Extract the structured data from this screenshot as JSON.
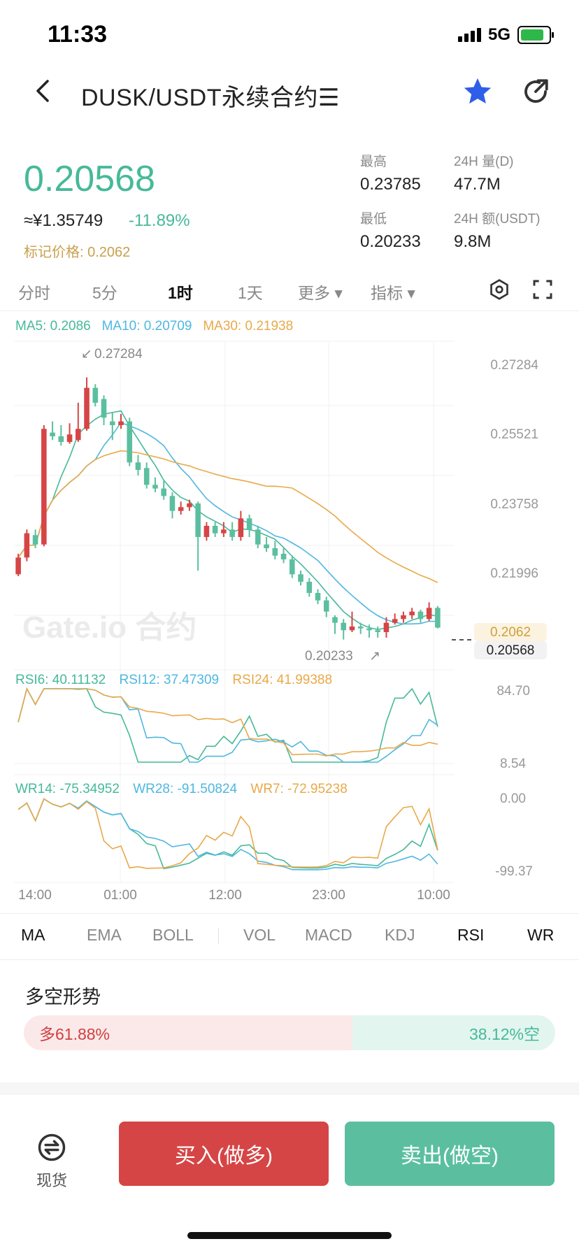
{
  "status": {
    "time": "11:33",
    "network": "5G"
  },
  "header": {
    "title": "DUSK/USDT永续合约☰"
  },
  "ticker": {
    "last_price": "0.20568",
    "cny_price": "≈¥1.35749",
    "change": "-11.89%",
    "mark_price": "标记价格: 0.2062",
    "high_label": "最高",
    "high_value": "0.23785",
    "vol_label": "24H 量(D)",
    "vol_value": "47.7M",
    "low_label": "最低",
    "low_value": "0.20233",
    "amount_label": "24H 额(USDT)",
    "amount_value": "9.8M"
  },
  "timeframe_tabs": [
    "分时",
    "5分",
    "1时",
    "1天",
    "更多 ▾",
    "指标 ▾"
  ],
  "active_timeframe": "1时",
  "ma_legend": {
    "ma5": "MA5: 0.2086",
    "ma10": "MA10: 0.20709",
    "ma30": "MA30: 0.21938"
  },
  "rsi_legend": {
    "rsi6": "RSI6: 40.11132",
    "rsi12": "RSI12: 37.47309",
    "rsi24": "RSI24: 41.99388"
  },
  "wr_legend": {
    "wr14": "WR14: -75.34952",
    "wr28": "WR28: -91.50824",
    "wr7": "WR7: -72.95238"
  },
  "watermark": "Gate.io 合约",
  "price_axis": [
    "0.27284",
    "0.25521",
    "0.23758",
    "0.21996"
  ],
  "high_marker": "0.27284",
  "low_marker": "0.20233",
  "mark_tag": "0.2062",
  "last_tag": "0.20568",
  "rsi_axis": [
    "84.70",
    "8.54"
  ],
  "wr_axis": [
    "0.00",
    "-99.37"
  ],
  "time_axis": [
    "14:00",
    "01:00",
    "12:00",
    "23:00",
    "10:00"
  ],
  "colors": {
    "up": "#d64545",
    "down": "#5bbf9f",
    "ma5": "#46b999",
    "ma10": "#4fb7e0",
    "ma30": "#e8a94a"
  },
  "chart_data": {
    "type": "candlestick",
    "interval": "1h",
    "candles": [
      {
        "o": 0.22,
        "c": 0.2245,
        "h": 0.2255,
        "l": 0.2195
      },
      {
        "o": 0.2245,
        "c": 0.231,
        "h": 0.232,
        "l": 0.2235
      },
      {
        "o": 0.2305,
        "c": 0.228,
        "h": 0.232,
        "l": 0.227
      },
      {
        "o": 0.228,
        "c": 0.259,
        "h": 0.26,
        "l": 0.2275
      },
      {
        "o": 0.258,
        "c": 0.257,
        "h": 0.261,
        "l": 0.256
      },
      {
        "o": 0.257,
        "c": 0.2555,
        "h": 0.26,
        "l": 0.2545
      },
      {
        "o": 0.2555,
        "c": 0.2575,
        "h": 0.2605,
        "l": 0.255
      },
      {
        "o": 0.256,
        "c": 0.259,
        "h": 0.266,
        "l": 0.2555
      },
      {
        "o": 0.259,
        "c": 0.27,
        "h": 0.2728,
        "l": 0.2585
      },
      {
        "o": 0.27,
        "c": 0.266,
        "h": 0.271,
        "l": 0.265
      },
      {
        "o": 0.267,
        "c": 0.262,
        "h": 0.268,
        "l": 0.26
      },
      {
        "o": 0.261,
        "c": 0.26,
        "h": 0.2635,
        "l": 0.256
      },
      {
        "o": 0.26,
        "c": 0.261,
        "h": 0.263,
        "l": 0.259
      },
      {
        "o": 0.261,
        "c": 0.25,
        "h": 0.262,
        "l": 0.249
      },
      {
        "o": 0.25,
        "c": 0.248,
        "h": 0.252,
        "l": 0.2465
      },
      {
        "o": 0.2485,
        "c": 0.244,
        "h": 0.25,
        "l": 0.243
      },
      {
        "o": 0.244,
        "c": 0.243,
        "h": 0.246,
        "l": 0.242
      },
      {
        "o": 0.243,
        "c": 0.241,
        "h": 0.245,
        "l": 0.24
      },
      {
        "o": 0.241,
        "c": 0.237,
        "h": 0.242,
        "l": 0.235
      },
      {
        "o": 0.237,
        "c": 0.238,
        "h": 0.2395,
        "l": 0.236
      },
      {
        "o": 0.238,
        "c": 0.239,
        "h": 0.24,
        "l": 0.237
      },
      {
        "o": 0.239,
        "c": 0.23,
        "h": 0.2395,
        "l": 0.221
      },
      {
        "o": 0.23,
        "c": 0.233,
        "h": 0.234,
        "l": 0.229
      },
      {
        "o": 0.233,
        "c": 0.231,
        "h": 0.234,
        "l": 0.23
      },
      {
        "o": 0.231,
        "c": 0.232,
        "h": 0.234,
        "l": 0.23
      },
      {
        "o": 0.232,
        "c": 0.23,
        "h": 0.234,
        "l": 0.229
      },
      {
        "o": 0.23,
        "c": 0.235,
        "h": 0.237,
        "l": 0.229
      },
      {
        "o": 0.235,
        "c": 0.232,
        "h": 0.236,
        "l": 0.23
      },
      {
        "o": 0.232,
        "c": 0.228,
        "h": 0.233,
        "l": 0.227
      },
      {
        "o": 0.228,
        "c": 0.227,
        "h": 0.23,
        "l": 0.226
      },
      {
        "o": 0.227,
        "c": 0.225,
        "h": 0.229,
        "l": 0.224
      },
      {
        "o": 0.2255,
        "c": 0.224,
        "h": 0.227,
        "l": 0.223
      },
      {
        "o": 0.224,
        "c": 0.22,
        "h": 0.225,
        "l": 0.219
      },
      {
        "o": 0.22,
        "c": 0.218,
        "h": 0.221,
        "l": 0.217
      },
      {
        "o": 0.218,
        "c": 0.215,
        "h": 0.219,
        "l": 0.214
      },
      {
        "o": 0.215,
        "c": 0.213,
        "h": 0.216,
        "l": 0.212
      },
      {
        "o": 0.213,
        "c": 0.21,
        "h": 0.214,
        "l": 0.2085
      },
      {
        "o": 0.2085,
        "c": 0.207,
        "h": 0.209,
        "l": 0.204
      },
      {
        "o": 0.207,
        "c": 0.205,
        "h": 0.208,
        "l": 0.2025
      },
      {
        "o": 0.205,
        "c": 0.206,
        "h": 0.21,
        "l": 0.2045
      },
      {
        "o": 0.206,
        "c": 0.2055,
        "h": 0.207,
        "l": 0.204
      },
      {
        "o": 0.2055,
        "c": 0.205,
        "h": 0.2065,
        "l": 0.203
      },
      {
        "o": 0.205,
        "c": 0.2045,
        "h": 0.206,
        "l": 0.203
      },
      {
        "o": 0.2045,
        "c": 0.207,
        "h": 0.2085,
        "l": 0.203
      },
      {
        "o": 0.207,
        "c": 0.208,
        "h": 0.2095,
        "l": 0.2065
      },
      {
        "o": 0.208,
        "c": 0.209,
        "h": 0.21,
        "l": 0.207
      },
      {
        "o": 0.209,
        "c": 0.21,
        "h": 0.211,
        "l": 0.208
      },
      {
        "o": 0.21,
        "c": 0.208,
        "h": 0.2105,
        "l": 0.207
      },
      {
        "o": 0.208,
        "c": 0.211,
        "h": 0.2125,
        "l": 0.2075
      },
      {
        "o": 0.211,
        "c": 0.2057,
        "h": 0.2115,
        "l": 0.2055
      }
    ],
    "ma5_end": 0.2086,
    "ma10_end": 0.20709,
    "ma30_end": 0.21938,
    "y_range": [
      0.2015,
      0.2765
    ]
  }
}
